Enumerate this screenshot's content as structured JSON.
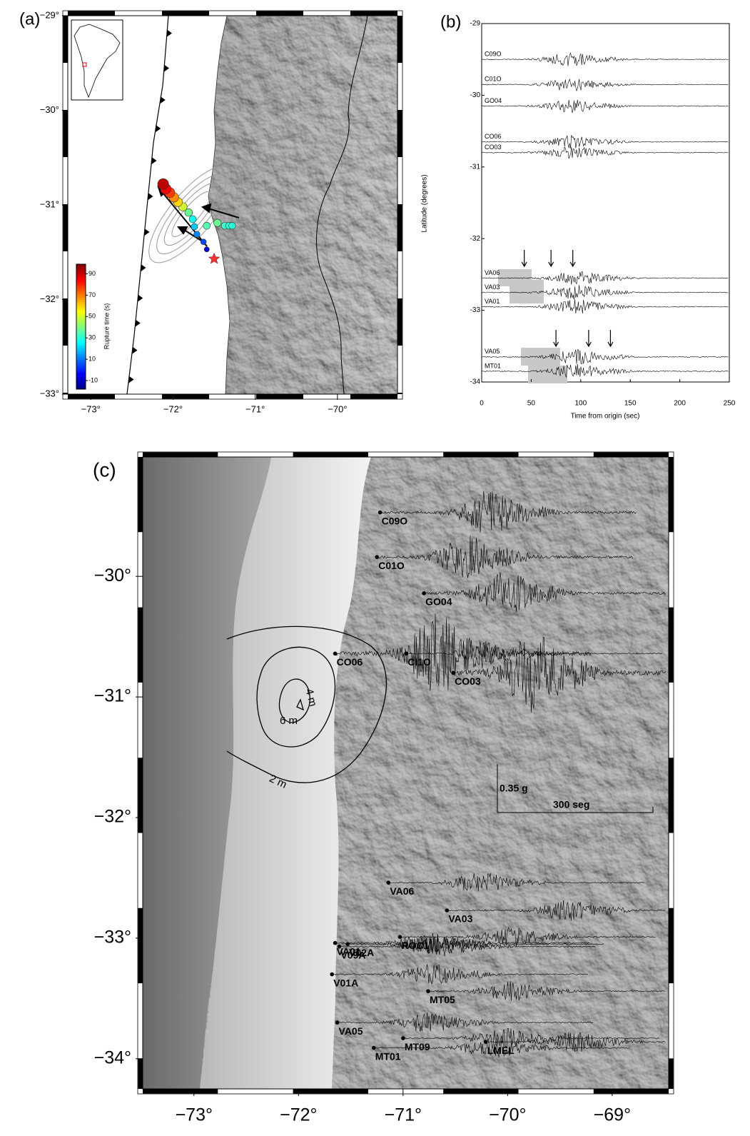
{
  "chart_data": [
    {
      "type": "scatter",
      "title": "(a)",
      "xlim": [
        -73.28,
        -69.27
      ],
      "ylim": [
        -33,
        -29
      ],
      "xticks": [
        {
          "value": -73,
          "label": "−73°"
        },
        {
          "value": -72,
          "label": "−72°"
        },
        {
          "value": -71,
          "label": "−71°"
        },
        {
          "value": -70,
          "label": "−70°"
        }
      ],
      "yticks": [
        {
          "value": -29,
          "label": "−29°"
        },
        {
          "value": -30,
          "label": "−30°"
        },
        {
          "value": -31,
          "label": "−31°"
        },
        {
          "value": -32,
          "label": "−32°"
        },
        {
          "value": -33,
          "label": "−33°"
        }
      ],
      "x": [
        -71.59,
        -71.63,
        -71.71,
        -71.74,
        -71.76,
        -71.81,
        -71.88,
        -71.94,
        -71.99,
        -72.04,
        -72.09,
        -72.12,
        -71.59,
        -71.46,
        -71.37,
        -71.32,
        -71.28
      ],
      "y": [
        -31.47,
        -31.39,
        -31.31,
        -31.23,
        -31.15,
        -31.08,
        -31.02,
        -30.97,
        -30.92,
        -30.87,
        -30.83,
        -30.78,
        -31.22,
        -31.19,
        -31.22,
        -31.22,
        -31.22
      ],
      "values": [
        -5,
        5,
        12,
        20,
        28,
        38,
        50,
        60,
        68,
        78,
        85,
        92,
        35,
        38,
        32,
        30,
        30
      ],
      "epicenter": [
        -71.5,
        -31.57
      ],
      "colorbar": {
        "label": "Rupture time (s)",
        "lim": [
          -18,
          99
        ],
        "ticks": [
          90,
          70,
          50,
          30,
          10,
          -10
        ]
      }
    },
    {
      "type": "line",
      "title": "(b)",
      "xlabel": "Time from origin (sec)",
      "ylabel": "Latitude (degrees)",
      "xlim": [
        0,
        250
      ],
      "ylim": [
        -34,
        -29
      ],
      "xticks": [
        0,
        50,
        100,
        150,
        200,
        250
      ],
      "yticks": [
        -29,
        -30,
        -31,
        -32,
        -33,
        -34
      ],
      "stations": [
        "C09O",
        "C01O",
        "GO04",
        "CO06",
        "CO03",
        "VA06",
        "VA03",
        "VA01",
        "VA05",
        "MT01"
      ],
      "y": [
        -29.5,
        -29.85,
        -30.15,
        -30.65,
        -30.8,
        -32.55,
        -32.75,
        -32.95,
        -33.65,
        -33.85
      ],
      "arrows_x": [
        43,
        70,
        92,
        75,
        108,
        130
      ]
    },
    {
      "type": "map",
      "title": "(c)",
      "xlim": [
        -73.49,
        -68.46
      ],
      "ylim": [
        -34.25,
        -29.01
      ],
      "xticks": [
        {
          "value": -73,
          "label": "−73°"
        },
        {
          "value": -72,
          "label": "−72°"
        },
        {
          "value": -71,
          "label": "−71°"
        },
        {
          "value": -70,
          "label": "−70°"
        },
        {
          "value": -69,
          "label": "−69°"
        }
      ],
      "yticks": [
        {
          "value": -30,
          "label": "−30°"
        },
        {
          "value": -31,
          "label": "−31°"
        },
        {
          "value": -32,
          "label": "−32°"
        },
        {
          "value": -33,
          "label": "−33°"
        },
        {
          "value": -34,
          "label": "−34°"
        }
      ],
      "stations": [
        "C09O",
        "C01O",
        "GO04",
        "CO06",
        "CI1O",
        "CO03",
        "VA06",
        "VA03",
        "ROC1",
        "VA01",
        "V02A",
        "V09A",
        "V01A",
        "MT05",
        "VA05",
        "MT09",
        "LMEL",
        "MT01"
      ],
      "x": [
        -71.22,
        -71.25,
        -70.8,
        -71.65,
        -70.97,
        -70.52,
        -71.14,
        -70.58,
        -71.03,
        -71.65,
        -71.53,
        -71.61,
        -71.68,
        -70.76,
        -71.63,
        -71.0,
        -70.21,
        -71.28
      ],
      "y": [
        -29.47,
        -29.84,
        -30.14,
        -30.64,
        -30.64,
        -30.8,
        -32.54,
        -32.77,
        -32.99,
        -33.04,
        -33.05,
        -33.07,
        -33.3,
        -33.44,
        -33.7,
        -33.83,
        -33.86,
        -33.91
      ],
      "contour_labels": [
        "2 m",
        "4 m",
        "6 m"
      ],
      "scale_labels": [
        "0.35 g",
        "300 seg"
      ]
    }
  ]
}
